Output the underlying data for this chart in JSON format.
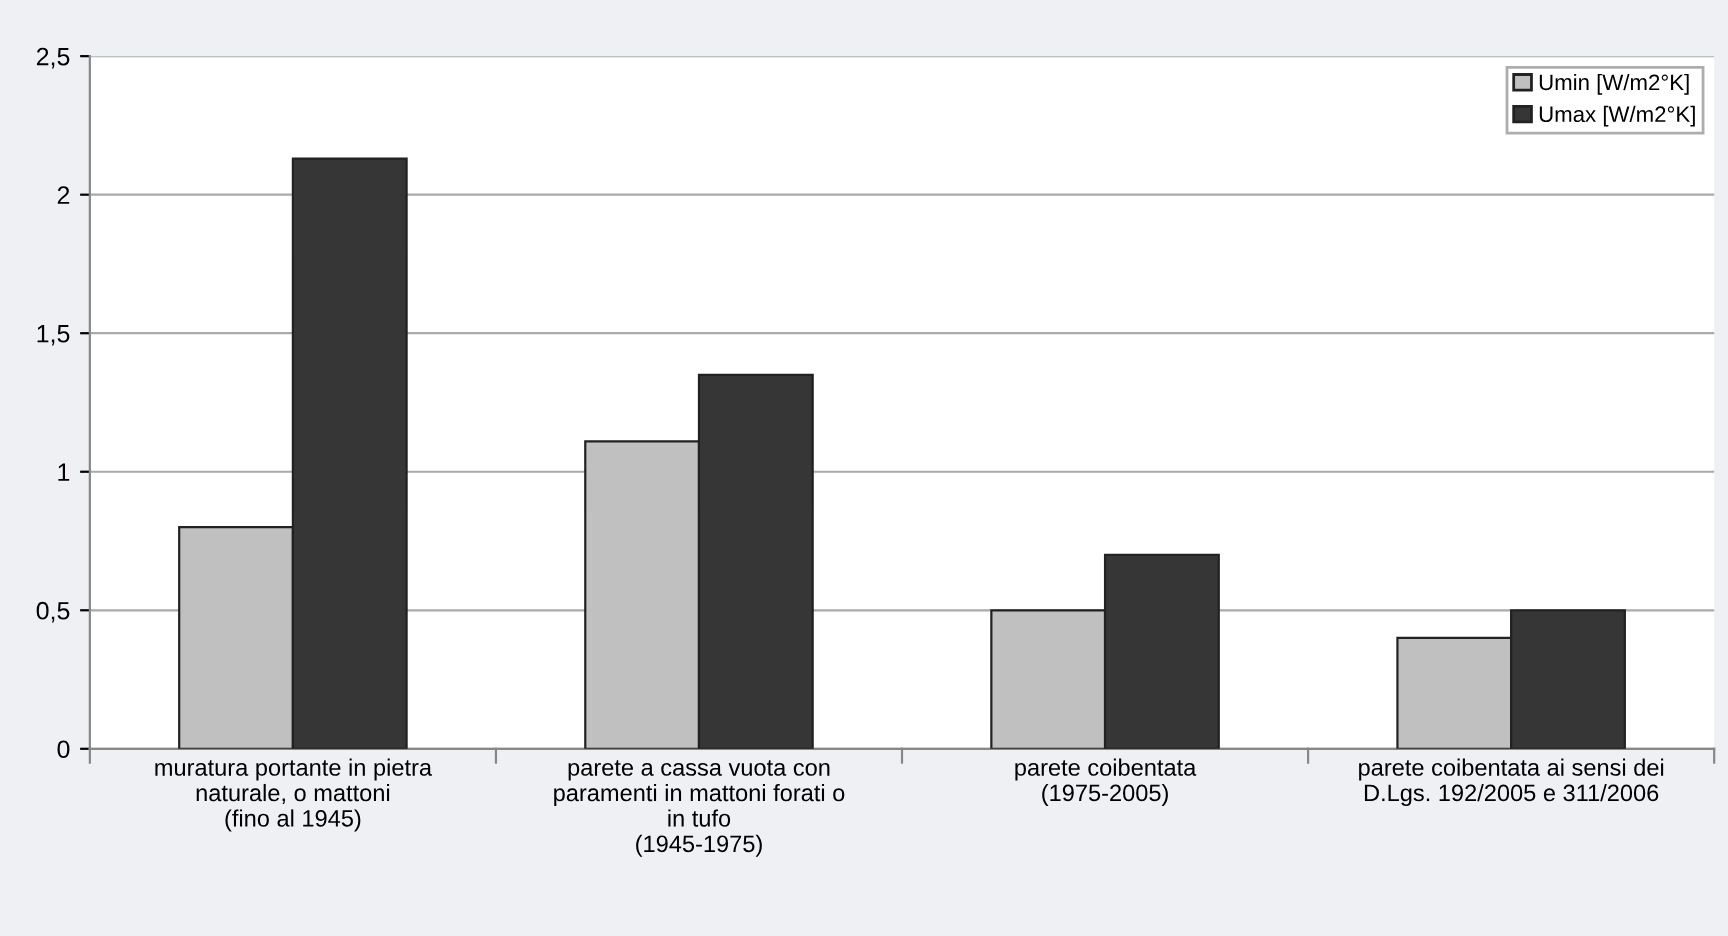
{
  "chart_data": {
    "type": "bar",
    "categories": [
      "muratura portante in pietra\nnaturale, o mattoni\n(fino al 1945)",
      "parete a cassa vuota con\nparamenti in mattoni forati o\nin tufo\n(1945-1975)",
      "parete coibentata\n(1975-2005)",
      "parete coibentata ai sensi dei\nD.Lgs. 192/2005 e 311/2006"
    ],
    "series": [
      {
        "name": "Umin [W/m2°K]",
        "color": "#c0c0c0",
        "values": [
          0.8,
          1.11,
          0.5,
          0.4
        ]
      },
      {
        "name": "Umax [W/m2°K]",
        "color": "#363636",
        "values": [
          2.13,
          1.35,
          0.7,
          0.5
        ]
      }
    ],
    "ylim": [
      0,
      2.5
    ],
    "yticks": [
      {
        "value": 0,
        "label": "0"
      },
      {
        "value": 0.5,
        "label": "0,5"
      },
      {
        "value": 1,
        "label": "1"
      },
      {
        "value": 1.5,
        "label": "1,5"
      },
      {
        "value": 2,
        "label": "2"
      },
      {
        "value": 2.5,
        "label": "2,5"
      }
    ],
    "grid": "y",
    "legend": "top right"
  }
}
